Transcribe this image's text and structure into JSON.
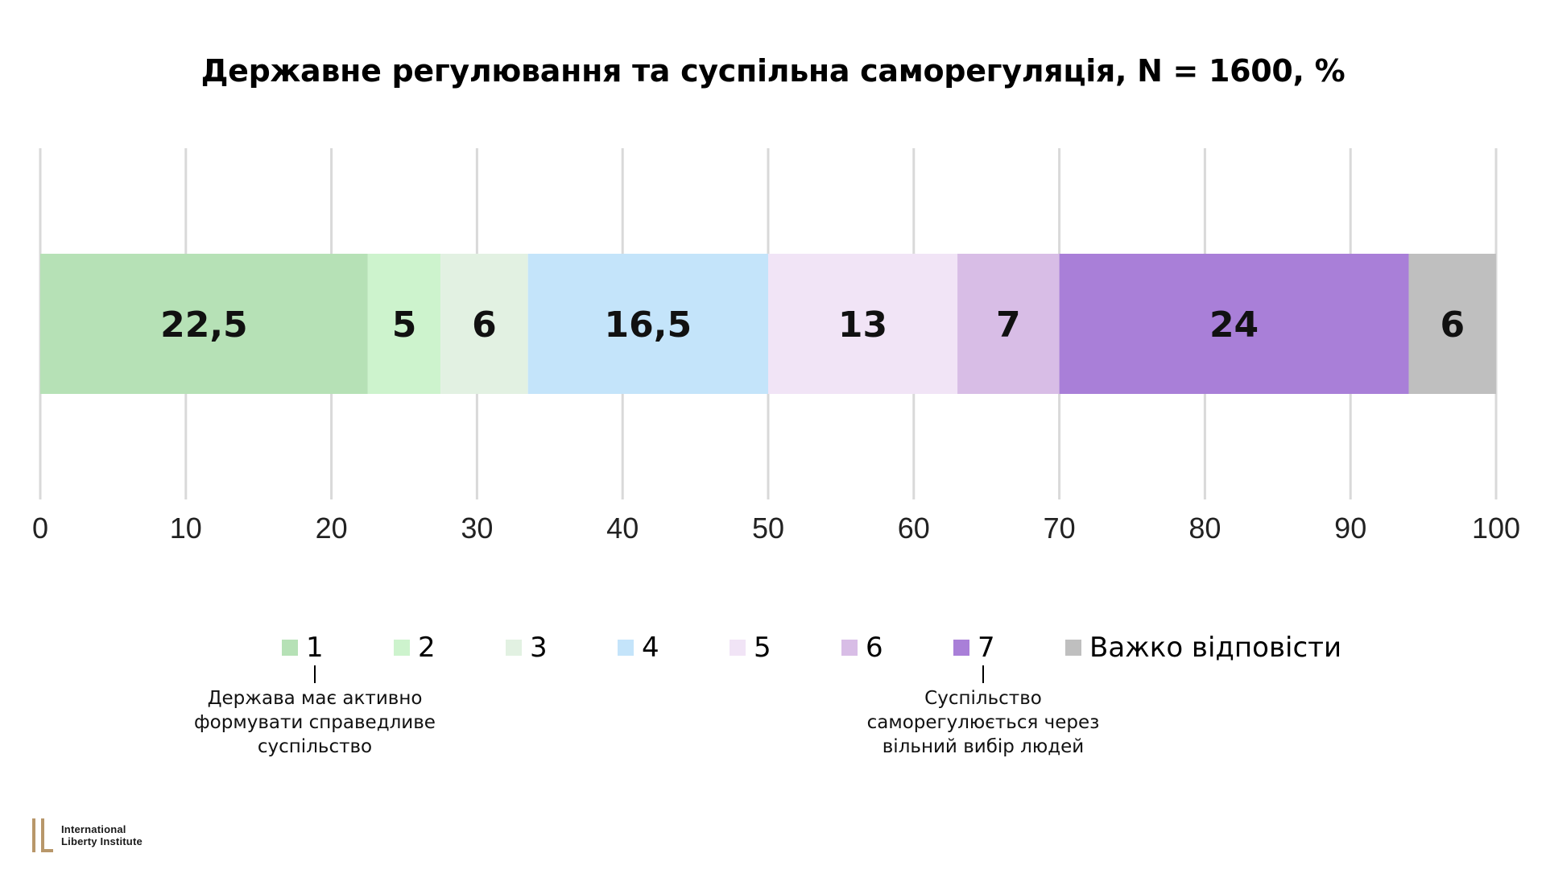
{
  "chart_data": {
    "type": "bar",
    "orientation": "horizontal",
    "stacked": true,
    "title": "Державне регулювання та суспільна саморегуляція, N = 1600, %",
    "segments": [
      {
        "name": "1",
        "value": 22.5,
        "label": "22,5",
        "color": "#b6e1b6"
      },
      {
        "name": "2",
        "value": 5,
        "label": "5",
        "color": "#cdf3cd"
      },
      {
        "name": "3",
        "value": 6,
        "label": "6",
        "color": "#e2f1e2"
      },
      {
        "name": "4",
        "value": 16.5,
        "label": "16,5",
        "color": "#c4e4fa"
      },
      {
        "name": "5",
        "value": 13,
        "label": "13",
        "color": "#f1e4f6"
      },
      {
        "name": "6",
        "value": 7,
        "label": "7",
        "color": "#d8bde6"
      },
      {
        "name": "7",
        "value": 24,
        "label": "24",
        "color": "#a97fd8"
      },
      {
        "name": "Важко відповісти",
        "value": 6,
        "label": "6",
        "color": "#bfbfbf"
      }
    ],
    "xlim": [
      0,
      100
    ],
    "xticks": [
      "0",
      "10",
      "20",
      "30",
      "40",
      "50",
      "60",
      "70",
      "80",
      "90",
      "100"
    ],
    "grid": true,
    "legend_position": "bottom"
  },
  "legend": {
    "items": [
      "1",
      "2",
      "3",
      "4",
      "5",
      "6",
      "7",
      "Важко відповісти"
    ],
    "note_left": "Держава має активно формувати справедливе суспільство",
    "note_right": "Суспільство саморегулюється через вільний вибір людей"
  },
  "logo": {
    "line1": "International",
    "line2": "Liberty Institute",
    "color": "#b8976a"
  }
}
